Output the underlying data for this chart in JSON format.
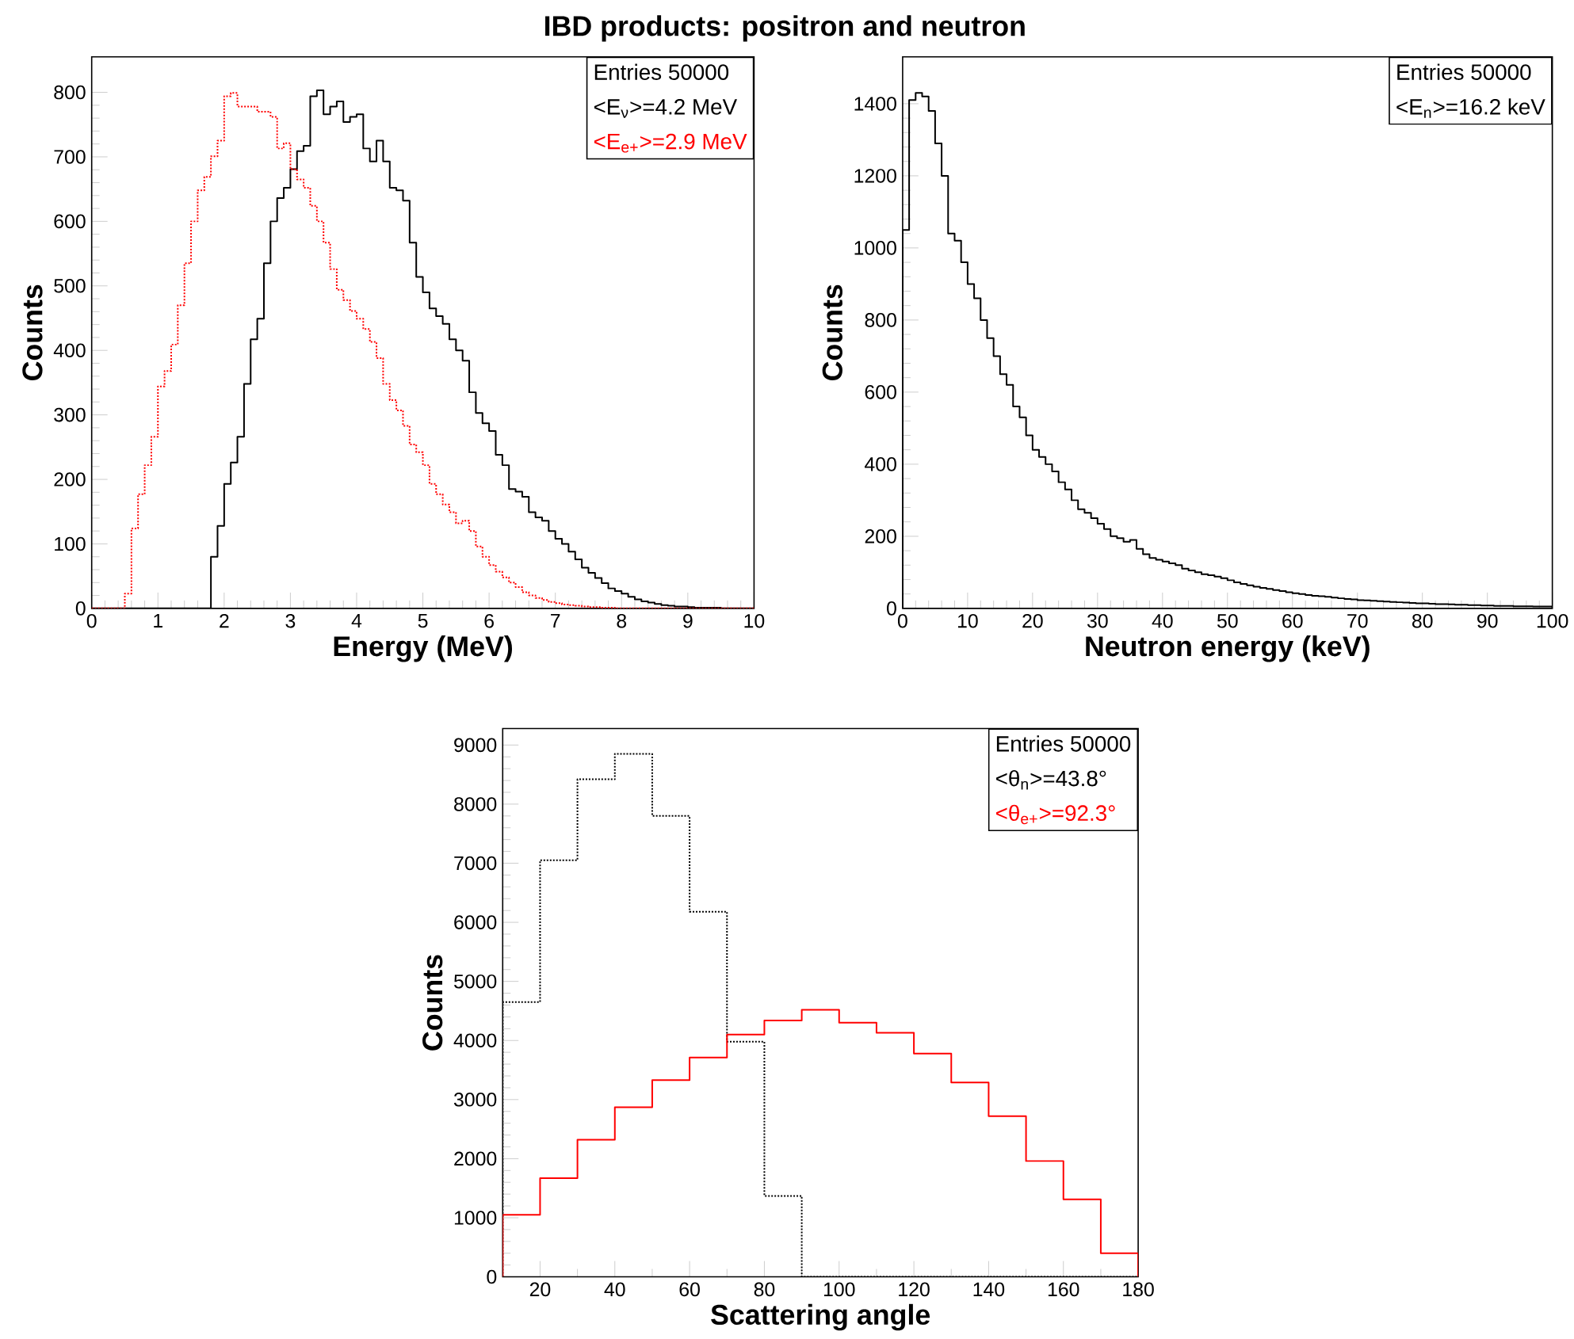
{
  "chart_data": [
    {
      "type": "histogram",
      "title": "IBD products: positron and neutron",
      "xlabel": "Energy (MeV)",
      "ylabel": "Counts",
      "xlim": [
        0,
        10
      ],
      "ylim": [
        0,
        855
      ],
      "xticks": [
        0,
        1,
        2,
        3,
        4,
        5,
        6,
        7,
        8,
        9,
        10
      ],
      "yticks": [
        0,
        100,
        200,
        300,
        400,
        500,
        600,
        700,
        800
      ],
      "legend": "top right",
      "annotations": [
        "Entries   50000"
      ],
      "bins": [
        0,
        0.1,
        0.2,
        0.3,
        0.4,
        0.5,
        0.6,
        0.7,
        0.8,
        0.9,
        1.0,
        1.1,
        1.2,
        1.3,
        1.4,
        1.5,
        1.6,
        1.7,
        1.8,
        1.9,
        2.0,
        2.1,
        2.2,
        2.3,
        2.4,
        2.5,
        2.6,
        2.7,
        2.8,
        2.9,
        3.0,
        3.1,
        3.2,
        3.3,
        3.4,
        3.5,
        3.6,
        3.7,
        3.8,
        3.9,
        4.0,
        4.1,
        4.2,
        4.3,
        4.4,
        4.5,
        4.6,
        4.7,
        4.8,
        4.9,
        5.0,
        5.1,
        5.2,
        5.3,
        5.4,
        5.5,
        5.6,
        5.7,
        5.8,
        5.9,
        6.0,
        6.1,
        6.2,
        6.3,
        6.4,
        6.5,
        6.6,
        6.7,
        6.8,
        6.9,
        7.0,
        7.1,
        7.2,
        7.3,
        7.4,
        7.5,
        7.6,
        7.7,
        7.8,
        7.9,
        8.0,
        8.1,
        8.2,
        8.3,
        8.4,
        8.5,
        8.6,
        8.7,
        8.8,
        8.9,
        9.0,
        9.1,
        9.2,
        9.3,
        9.4,
        9.5,
        9.6,
        9.7,
        9.8,
        9.9,
        10.0
      ],
      "series": [
        {
          "name": "<E$_{ν}$>=4.2 MeV",
          "color": "#000000",
          "values": [
            0,
            0,
            0,
            0,
            0,
            0,
            0,
            0,
            0,
            0,
            0,
            0,
            0,
            0,
            0,
            0,
            0,
            0,
            80,
            128,
            193,
            226,
            266,
            348,
            417,
            449,
            535,
            600,
            636,
            652,
            681,
            709,
            717,
            794,
            803,
            766,
            778,
            786,
            754,
            762,
            766,
            713,
            693,
            725,
            693,
            652,
            648,
            632,
            567,
            514,
            490,
            465,
            453,
            441,
            417,
            400,
            384,
            335,
            303,
            287,
            275,
            238,
            222,
            185,
            181,
            173,
            149,
            141,
            136,
            120,
            108,
            100,
            88,
            76,
            63,
            55,
            47,
            39,
            31,
            27,
            23,
            18,
            14,
            11,
            9,
            7,
            5,
            4,
            3,
            3,
            2,
            1,
            1,
            1,
            1,
            0,
            0,
            0,
            0,
            0
          ]
        },
        {
          "name": "<E$_{e+}$>=2.9 MeV",
          "color": "#ff0000",
          "line_style": "dotted",
          "values": [
            0,
            0,
            0,
            0,
            0,
            23,
            124,
            177,
            222,
            266,
            344,
            368,
            409,
            470,
            535,
            600,
            648,
            669,
            701,
            725,
            794,
            799,
            778,
            778,
            778,
            770,
            770,
            762,
            713,
            721,
            681,
            665,
            652,
            624,
            600,
            567,
            526,
            494,
            478,
            461,
            449,
            433,
            413,
            388,
            348,
            323,
            307,
            283,
            254,
            242,
            222,
            193,
            177,
            161,
            149,
            132,
            136,
            120,
            96,
            80,
            67,
            57,
            48,
            40,
            33,
            25,
            20,
            16,
            13,
            10,
            8,
            6,
            5,
            4,
            3,
            2,
            2,
            1,
            1,
            0,
            0,
            0,
            0,
            0,
            0,
            0,
            0,
            0,
            0,
            0,
            0,
            0,
            0,
            0,
            0,
            0,
            0,
            0,
            0,
            0
          ]
        }
      ]
    },
    {
      "type": "histogram",
      "xlabel": "Neutron energy (keV)",
      "ylabel": "Counts",
      "xlim": [
        0,
        100
      ],
      "ylim": [
        0,
        1530
      ],
      "xticks": [
        0,
        10,
        20,
        30,
        40,
        50,
        60,
        70,
        80,
        90,
        100
      ],
      "yticks": [
        0,
        200,
        400,
        600,
        800,
        1000,
        1200,
        1400
      ],
      "legend": "top right",
      "annotations": [
        "Entries   50000"
      ],
      "bins": [
        0,
        1,
        2,
        3,
        4,
        5,
        6,
        7,
        8,
        9,
        10,
        11,
        12,
        13,
        14,
        15,
        16,
        17,
        18,
        19,
        20,
        21,
        22,
        23,
        24,
        25,
        26,
        27,
        28,
        29,
        30,
        31,
        32,
        33,
        34,
        35,
        36,
        37,
        38,
        39,
        40,
        41,
        42,
        43,
        44,
        45,
        46,
        47,
        48,
        49,
        50,
        51,
        52,
        53,
        54,
        55,
        56,
        57,
        58,
        59,
        60,
        61,
        62,
        63,
        64,
        65,
        66,
        67,
        68,
        69,
        70,
        71,
        72,
        73,
        74,
        75,
        76,
        77,
        78,
        79,
        80,
        81,
        82,
        83,
        84,
        85,
        86,
        87,
        88,
        89,
        90,
        91,
        92,
        93,
        94,
        95,
        96,
        97,
        98,
        99,
        100
      ],
      "series": [
        {
          "name": "<E$_{n}$>=16.2 keV",
          "color": "#000000",
          "values": [
            1050,
            1410,
            1430,
            1420,
            1380,
            1290,
            1200,
            1040,
            1020,
            960,
            900,
            860,
            800,
            750,
            700,
            650,
            620,
            560,
            530,
            480,
            440,
            420,
            400,
            380,
            350,
            330,
            300,
            275,
            265,
            250,
            235,
            220,
            200,
            195,
            185,
            190,
            165,
            150,
            140,
            135,
            130,
            125,
            120,
            110,
            105,
            100,
            95,
            92,
            88,
            84,
            78,
            72,
            68,
            64,
            60,
            57,
            54,
            51,
            48,
            45,
            42,
            40,
            37,
            35,
            34,
            32,
            30,
            28,
            26,
            25,
            23,
            22,
            21,
            20,
            19,
            18,
            17,
            16,
            15,
            14,
            14,
            13,
            12,
            12,
            11,
            10,
            10,
            9,
            9,
            8,
            8,
            7,
            7,
            7,
            6,
            6,
            6,
            5,
            5,
            5
          ]
        }
      ]
    },
    {
      "type": "histogram",
      "xlabel": "Scattering angle",
      "ylabel": "Counts",
      "xlim": [
        10,
        180
      ],
      "ylim": [
        0,
        9280
      ],
      "xticks": [
        20,
        40,
        60,
        80,
        100,
        120,
        140,
        160,
        180
      ],
      "yticks": [
        0,
        1000,
        2000,
        3000,
        4000,
        5000,
        6000,
        7000,
        8000,
        9000
      ],
      "legend": "top right",
      "annotations": [
        "Entries   50000"
      ],
      "bins": [
        10,
        20,
        30,
        40,
        50,
        60,
        70,
        80,
        90,
        100,
        110,
        120,
        130,
        140,
        150,
        160,
        170,
        180
      ],
      "series": [
        {
          "name": "<θ$_{n}$>=43.8°",
          "color": "#000000",
          "line_style": "dotted",
          "values": [
            4650,
            7050,
            8420,
            8850,
            7800,
            6180,
            3980,
            1370,
            0,
            0,
            0,
            0,
            0,
            0,
            0,
            0,
            0
          ]
        },
        {
          "name": "<θ$_{e+}$>=92.3°",
          "color": "#ff0000",
          "values": [
            1050,
            1670,
            2320,
            2870,
            3330,
            3710,
            4100,
            4340,
            4520,
            4300,
            4130,
            3780,
            3290,
            2720,
            1960,
            1310,
            400
          ]
        }
      ]
    }
  ]
}
